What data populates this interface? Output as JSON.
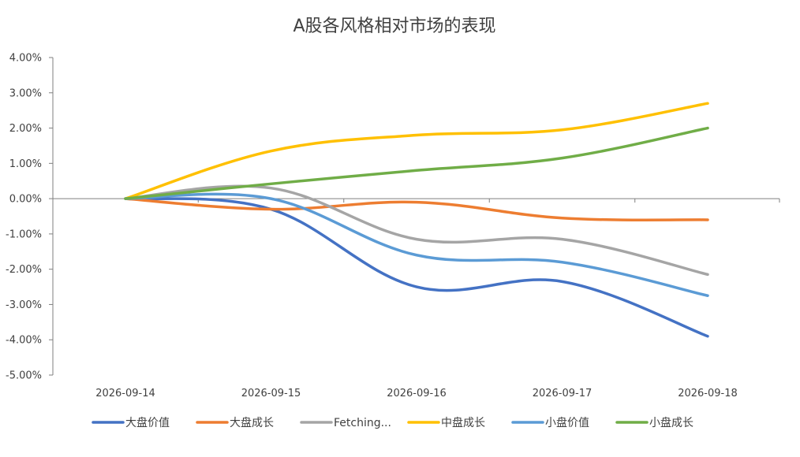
{
  "chart_data": {
    "type": "line",
    "title": "A股各风格相对市场的表现",
    "xlabel": "",
    "ylabel": "",
    "categories": [
      "2026-09-14",
      "2026-09-15",
      "2026-09-16",
      "2026-09-17",
      "2026-09-18"
    ],
    "ylim": [
      -0.05,
      0.04
    ],
    "yticks": [
      0.04,
      0.03,
      0.02,
      0.01,
      0,
      -0.01,
      -0.02,
      -0.03,
      -0.04,
      -0.05
    ],
    "ytick_labels": [
      "4.00%",
      "3.00%",
      "2.00%",
      "1.00%",
      "0.00%",
      "-1.00%",
      "-2.00%",
      "-3.00%",
      "-4.00%",
      "-5.00%"
    ],
    "grid": false,
    "legend_position": "bottom",
    "series": [
      {
        "name": "大盘价值",
        "color": "#4472C4",
        "values": [
          0,
          -0.003,
          -0.025,
          -0.0235,
          -0.039
        ]
      },
      {
        "name": "大盘成长",
        "color": "#ED7D31",
        "values": [
          0,
          -0.003,
          -0.001,
          -0.0055,
          -0.006
        ]
      },
      {
        "name": "Fetching...",
        "color": "#A5A5A5",
        "values": [
          0,
          0.003,
          -0.0115,
          -0.0115,
          -0.0215
        ]
      },
      {
        "name": "中盘成长",
        "color": "#FFC000",
        "values": [
          0,
          0.0135,
          0.018,
          0.0195,
          0.027
        ]
      },
      {
        "name": "小盘价值",
        "color": "#5B9BD5",
        "values": [
          0,
          0,
          -0.016,
          -0.018,
          -0.0275
        ]
      },
      {
        "name": "小盘成长",
        "color": "#70AD47",
        "values": [
          0,
          0.0042,
          0.008,
          0.0115,
          0.02
        ]
      }
    ]
  }
}
